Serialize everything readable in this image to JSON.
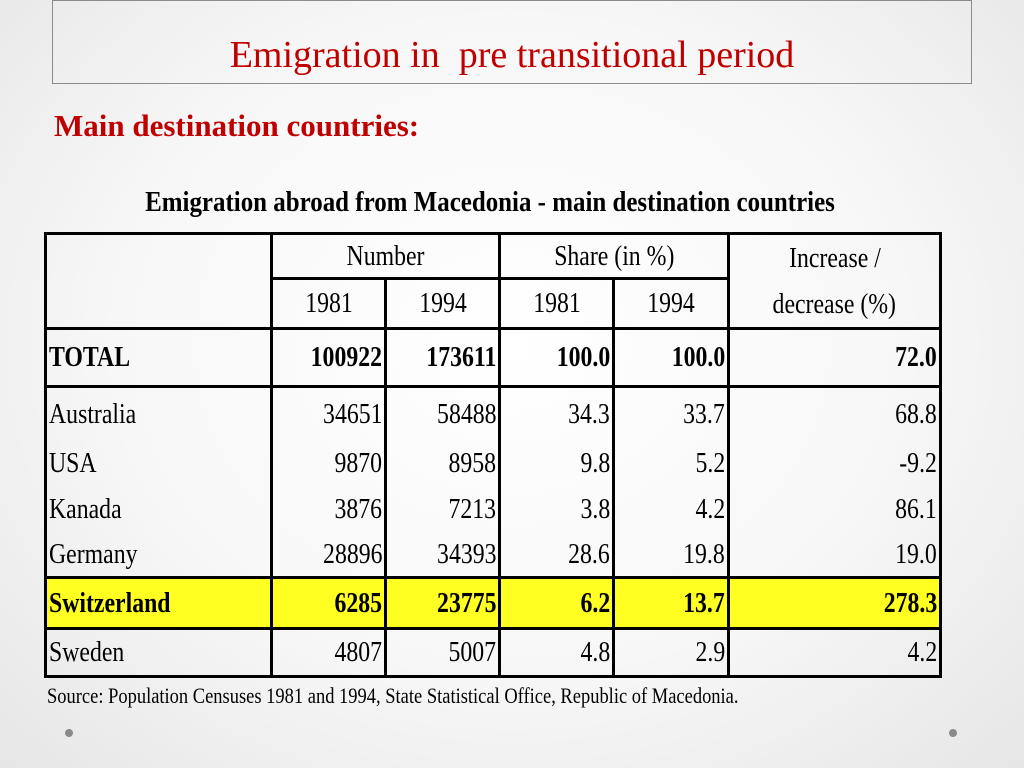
{
  "slide": {
    "title": "Emigration in  pre transitional period",
    "subtitle": "Main destination countries:"
  },
  "table": {
    "caption": "Emigration abroad from Macedonia - main destination countries",
    "headers": {
      "number": "Number",
      "share": "Share (in %)",
      "increase_line1": "Increase /",
      "increase_line2": "decrease (%)",
      "year_1981": "1981",
      "year_1994": "1994"
    },
    "total": {
      "country": "TOTAL",
      "n1981": "100922",
      "n1994": "173611",
      "s1981": "100.0",
      "s1994": "100.0",
      "change": "72.0"
    },
    "rows": [
      {
        "country": "Australia",
        "n1981": "34651",
        "n1994": "58488",
        "s1981": "34.3",
        "s1994": "33.7",
        "change": "68.8"
      },
      {
        "country": "USA",
        "n1981": "9870",
        "n1994": "8958",
        "s1981": "9.8",
        "s1994": "5.2",
        "change": "-9.2"
      },
      {
        "country": "Kanada",
        "n1981": "3876",
        "n1994": "7213",
        "s1981": "3.8",
        "s1994": "4.2",
        "change": "86.1"
      },
      {
        "country": "Germany",
        "n1981": "28896",
        "n1994": "34393",
        "s1981": "28.6",
        "s1994": "19.8",
        "change": "19.0"
      }
    ],
    "highlight": {
      "country": "Switzerland",
      "n1981": "6285",
      "n1994": "23775",
      "s1981": "6.2",
      "s1994": "13.7",
      "change": "278.3",
      "color": "#ffff22"
    },
    "last": {
      "country": "Sweden",
      "n1981": "4807",
      "n1994": "5007",
      "s1981": "4.8",
      "s1994": "2.9",
      "change": "4.2"
    },
    "source": "Source: Population Censuses 1981 and 1994, State Statistical Office, Republic of Macedonia."
  },
  "colors": {
    "accent": "#c00000"
  }
}
